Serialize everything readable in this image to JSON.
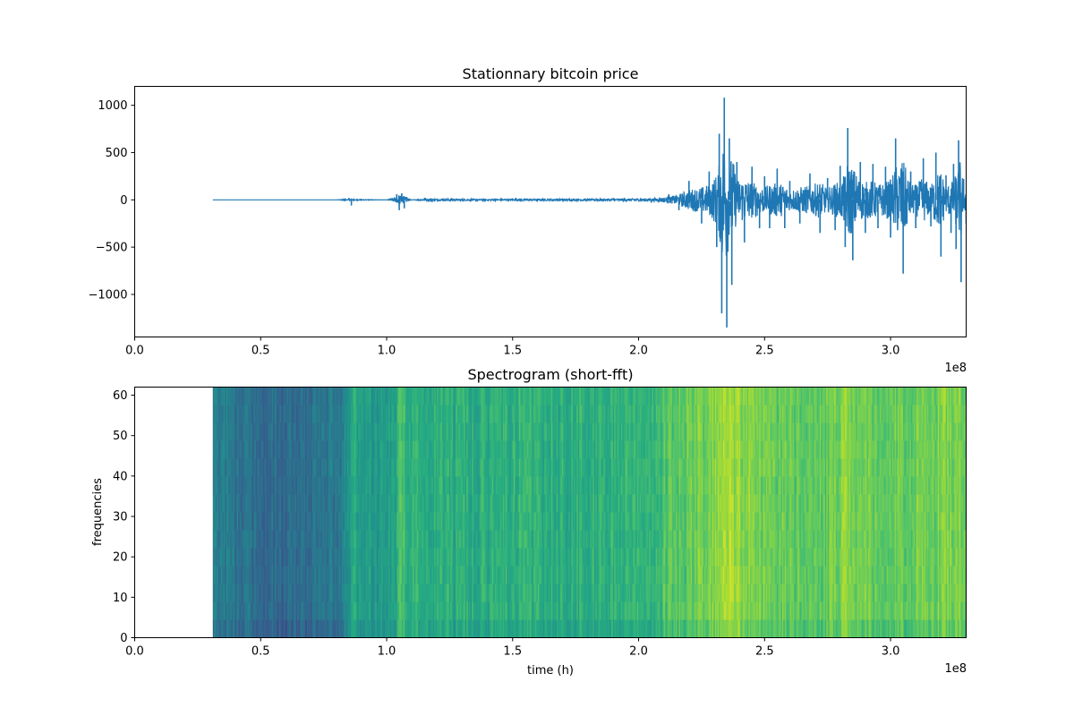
{
  "chart_data": [
    {
      "type": "line",
      "title": "Stationnary bitcoin price",
      "xlabel": "",
      "ylabel": "",
      "xlim": [
        0,
        330000000
      ],
      "ylim": [
        -1450,
        1200
      ],
      "x_ticks": [
        0,
        50000000,
        100000000,
        150000000,
        200000000,
        250000000,
        300000000
      ],
      "x_tick_labels": [
        "0.0",
        "0.5",
        "1.0",
        "1.5",
        "2.0",
        "2.5",
        "3.0"
      ],
      "x_offset_label": "1e8",
      "y_ticks": [
        1000,
        500,
        0,
        -500,
        -1000
      ],
      "y_tick_labels": [
        "1000",
        "500",
        "0",
        "−500",
        "−1000"
      ],
      "color": "#1f77b4",
      "grid": false,
      "series": [
        {
          "x": [
            31000000,
            50000000,
            80000000,
            85000000,
            86000000,
            87000000,
            100000000,
            104000000,
            105000000,
            106000000,
            107000000,
            108000000,
            110000000,
            115000000,
            130000000,
            150000000,
            170000000,
            190000000,
            205000000,
            212000000,
            216000000,
            220000000,
            225000000,
            228000000,
            231000000,
            232000000,
            233000000,
            234000000,
            235000000,
            236000000,
            237000000,
            239000000,
            242000000,
            245000000,
            248000000,
            250000000,
            252000000,
            255000000,
            258000000,
            260000000,
            264000000,
            268000000,
            272000000,
            275000000,
            278000000,
            280000000,
            282000000,
            283000000,
            285000000,
            288000000,
            290000000,
            293000000,
            295000000,
            298000000,
            300000000,
            302000000,
            305000000,
            308000000,
            310000000,
            313000000,
            316000000,
            318000000,
            320000000,
            322000000,
            324000000,
            325000000,
            326000000,
            327000000,
            328000000,
            329000000,
            330000000
          ],
          "y": [
            0,
            0,
            0,
            20,
            -60,
            10,
            0,
            60,
            -110,
            70,
            -90,
            30,
            0,
            20,
            -15,
            15,
            -20,
            20,
            -30,
            60,
            -110,
            200,
            -250,
            300,
            -500,
            700,
            -1200,
            1080,
            -1350,
            650,
            -900,
            400,
            -450,
            350,
            -300,
            250,
            -300,
            330,
            -300,
            200,
            -250,
            280,
            -350,
            230,
            -320,
            360,
            -500,
            760,
            -640,
            400,
            -350,
            380,
            -300,
            350,
            -400,
            650,
            -780,
            300,
            -300,
            440,
            -280,
            500,
            -600,
            260,
            -350,
            380,
            -520,
            630,
            -870,
            220,
            -250
          ]
        }
      ]
    },
    {
      "type": "heatmap",
      "title": "Spectrogram (short-fft)",
      "xlabel": "time (h)",
      "ylabel": "frequencies",
      "xlim": [
        0,
        330000000
      ],
      "ylim": [
        0,
        62
      ],
      "x_ticks": [
        0,
        50000000,
        100000000,
        150000000,
        200000000,
        250000000,
        300000000
      ],
      "x_tick_labels": [
        "0.0",
        "0.5",
        "1.0",
        "1.5",
        "2.0",
        "2.5",
        "3.0"
      ],
      "x_offset_label": "1e8",
      "y_ticks": [
        0,
        10,
        20,
        30,
        40,
        50,
        60
      ],
      "y_tick_labels": [
        "0",
        "10",
        "20",
        "30",
        "40",
        "50",
        "60"
      ],
      "colormap": "viridis",
      "data_start_x": 31000000,
      "intensity_profile": {
        "x": [
          31000000,
          40000000,
          50000000,
          60000000,
          70000000,
          80000000,
          84000000,
          86000000,
          90000000,
          100000000,
          103000000,
          105000000,
          110000000,
          130000000,
          150000000,
          170000000,
          190000000,
          205000000,
          212000000,
          220000000,
          228000000,
          233000000,
          236000000,
          240000000,
          250000000,
          260000000,
          270000000,
          278000000,
          282000000,
          285000000,
          295000000,
          305000000,
          315000000,
          325000000,
          330000000
        ],
        "level": [
          0.42,
          0.39,
          0.36,
          0.34,
          0.37,
          0.4,
          0.48,
          0.62,
          0.55,
          0.54,
          0.56,
          0.7,
          0.64,
          0.62,
          0.64,
          0.63,
          0.64,
          0.66,
          0.72,
          0.76,
          0.8,
          0.86,
          0.88,
          0.84,
          0.78,
          0.76,
          0.74,
          0.78,
          0.84,
          0.8,
          0.76,
          0.77,
          0.78,
          0.8,
          0.82
        ]
      }
    }
  ]
}
